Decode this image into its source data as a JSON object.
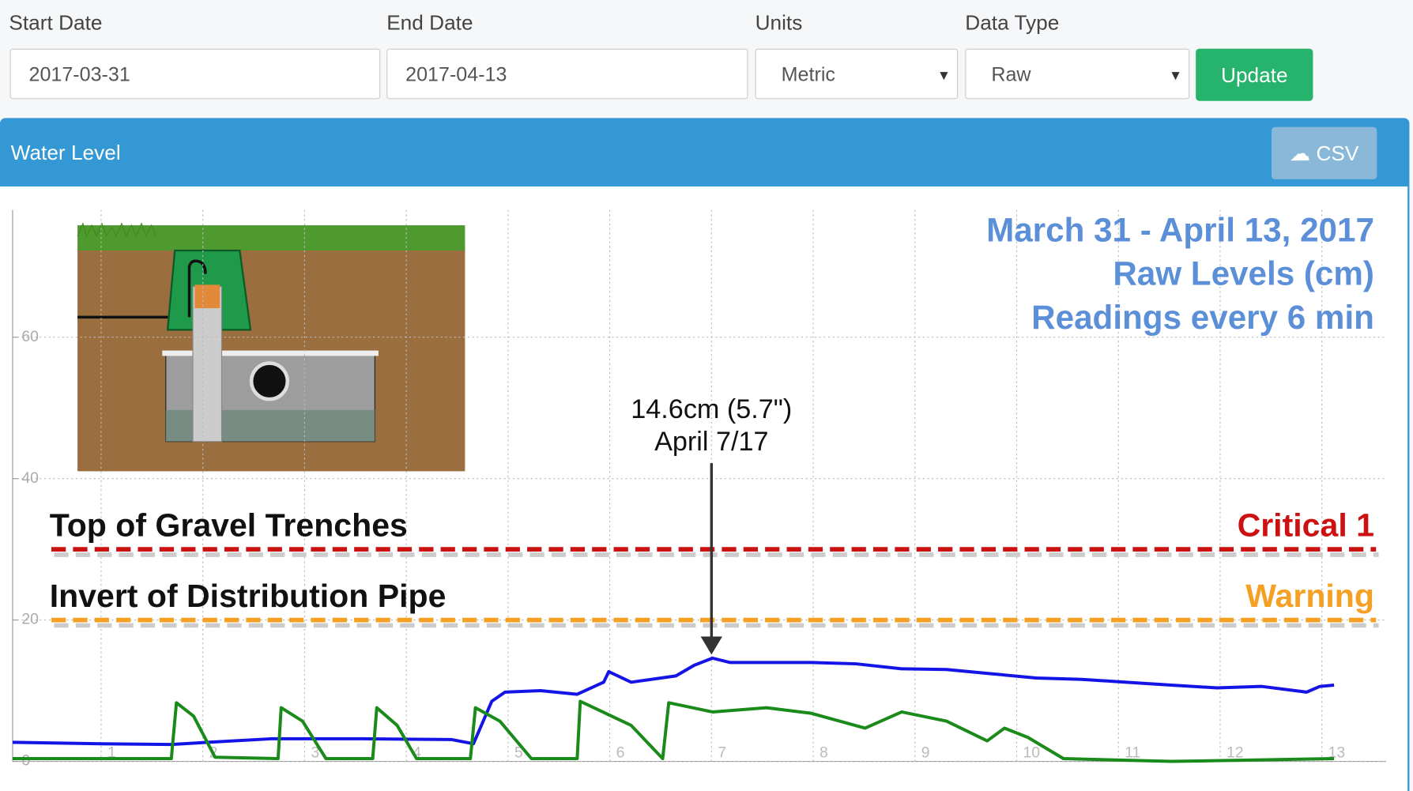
{
  "form": {
    "fields": [
      {
        "label": "Start Date",
        "value": "2017-03-31"
      },
      {
        "label": "End Date",
        "value": "2017-04-13"
      },
      {
        "label": "Units",
        "value": "Metric"
      },
      {
        "label": "Data Type",
        "value": "Raw"
      }
    ],
    "button": "Update"
  },
  "panel": {
    "title": "Water Level",
    "button": "CSV"
  },
  "chart_data": {
    "type": "line",
    "title": [
      "March 31 - April 13, 2017",
      "Raw Levels (cm)",
      "Readings every 6 min"
    ],
    "xlim": [
      0.13,
      13.63
    ],
    "xticks": [
      1,
      2,
      3,
      4,
      5,
      6,
      7,
      8,
      9,
      10,
      11,
      12,
      13
    ],
    "ylim": [
      0,
      78
    ],
    "yticks": [
      0,
      20,
      40,
      60
    ],
    "grid": true,
    "series": [
      {
        "color": "#1414e6",
        "x": [
          0.13,
          1,
          1.69,
          2.05,
          2.67,
          3.55,
          4.44,
          4.66,
          4.84,
          4.97,
          5.32,
          5.68,
          5.94,
          5.99,
          6.21,
          6.65,
          6.83,
          7.01,
          7.18,
          7.98,
          8.42,
          8.87,
          9.31,
          9.75,
          10.19,
          10.64,
          11.08,
          11.52,
          11.97,
          12.41,
          12.85,
          12.98,
          13.12
        ],
        "values": [
          2.7,
          2.5,
          2.4,
          2.7,
          3.2,
          3.2,
          3.1,
          2.5,
          8.5,
          9.8,
          10,
          9.5,
          11.2,
          12.7,
          11.2,
          12.1,
          13.6,
          14.6,
          14,
          14,
          13.8,
          13.1,
          13,
          12.4,
          11.8,
          11.6,
          11.2,
          10.8,
          10.4,
          10.6,
          9.8,
          10.6,
          10.8
        ]
      },
      {
        "color": "#1a8a1a",
        "x": [
          0.13,
          1.69,
          1.74,
          1.91,
          2.12,
          2.74,
          2.77,
          2.98,
          3.21,
          3.67,
          3.71,
          3.91,
          4.1,
          4.63,
          4.68,
          4.92,
          5.23,
          5.68,
          5.71,
          6.21,
          6.52,
          6.58,
          7.01,
          7.54,
          7.98,
          8.51,
          8.87,
          9.31,
          9.71,
          9.88,
          10.11,
          10.46,
          11.52,
          13.12
        ],
        "values": [
          0.4,
          0.4,
          8.3,
          6.4,
          0.6,
          0.4,
          7.6,
          5.7,
          0.4,
          0.4,
          7.6,
          5.1,
          0.4,
          0.4,
          7.6,
          5.7,
          0.4,
          0.4,
          8.5,
          5.1,
          0.4,
          8.3,
          7,
          7.6,
          6.8,
          4.7,
          7,
          5.7,
          2.9,
          4.7,
          3.4,
          0.4,
          0,
          0.4
        ]
      }
    ],
    "thresholds": [
      {
        "label": "Top of Gravel Trenches",
        "name": "Critical 1",
        "value": 30,
        "color": "#cc1111"
      },
      {
        "label": "Invert of Distribution Pipe",
        "name": "Warning",
        "value": 20,
        "color": "#f5a023"
      }
    ],
    "annotation": {
      "text": [
        "14.6cm (5.7\")",
        "April 7/17"
      ],
      "x": 7,
      "y": 14.6
    }
  }
}
